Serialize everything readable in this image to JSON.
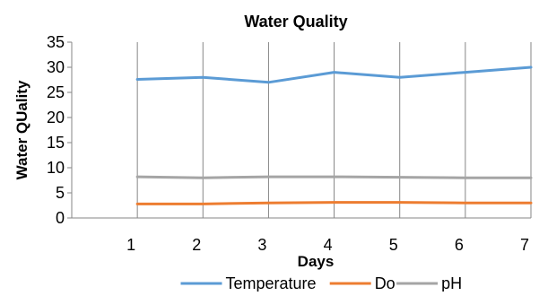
{
  "chart_data": {
    "type": "line",
    "title": "Water Quality",
    "xlabel": "Days",
    "ylabel": "Water QUality",
    "categories": [
      "1",
      "2",
      "3",
      "4",
      "5",
      "6",
      "7"
    ],
    "ylim": [
      0,
      35
    ],
    "yticks": [
      "0",
      "5",
      "10",
      "15",
      "20",
      "25",
      "30",
      "35"
    ],
    "grid": "vertical",
    "legend_position": "bottom",
    "series": [
      {
        "name": "Temperature",
        "color": "#5B9BD5",
        "values": [
          27.6,
          28.0,
          27.0,
          29.0,
          28.0,
          29.0,
          30.0
        ]
      },
      {
        "name": "Do",
        "color": "#ED7D31",
        "values": [
          2.8,
          2.8,
          3.0,
          3.1,
          3.1,
          3.0,
          3.0
        ]
      },
      {
        "name": "pH",
        "color": "#A5A5A5",
        "values": [
          8.2,
          8.0,
          8.2,
          8.2,
          8.1,
          8.0,
          8.0
        ]
      }
    ]
  }
}
